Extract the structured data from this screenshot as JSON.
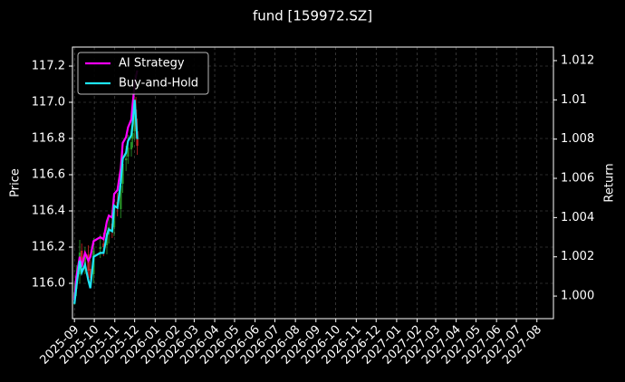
{
  "chart_data": {
    "type": "candlestick-returns",
    "title": "fund [159972.SZ]",
    "ylabel": "Price",
    "y2label": "Return",
    "x": [
      "2025-09-01",
      "2025-09-04",
      "2025-09-09",
      "2025-09-12",
      "2025-09-17",
      "2025-09-22",
      "2025-09-25",
      "2025-09-30",
      "2025-10-10",
      "2025-10-15",
      "2025-10-20",
      "2025-10-23",
      "2025-10-28",
      "2025-10-31",
      "2025-11-05",
      "2025-11-10",
      "2025-11-13",
      "2025-11-18",
      "2025-11-21",
      "2025-11-26",
      "2025-11-28",
      "2025-12-01",
      "2025-12-03",
      "2025-12-05"
    ],
    "open": [
      115.92,
      115.97,
      116.05,
      116.18,
      116.1,
      116.16,
      116.08,
      116.05,
      116.19,
      116.22,
      116.21,
      116.27,
      116.33,
      116.31,
      116.45,
      116.41,
      116.55,
      116.68,
      116.7,
      116.74,
      116.8,
      116.84,
      116.96,
      116.84
    ],
    "high": [
      116.0,
      116.1,
      116.24,
      116.22,
      116.2,
      116.21,
      116.13,
      116.25,
      116.27,
      116.28,
      116.35,
      116.38,
      116.39,
      116.5,
      116.5,
      116.6,
      116.73,
      116.76,
      116.82,
      116.85,
      116.9,
      117.02,
      117.03,
      116.91
    ],
    "low": [
      115.88,
      115.93,
      116.0,
      116.05,
      116.05,
      116.02,
      115.98,
      116.0,
      116.14,
      116.15,
      116.16,
      116.22,
      116.25,
      116.26,
      116.37,
      116.36,
      116.5,
      116.62,
      116.66,
      116.7,
      116.75,
      116.79,
      116.8,
      116.71
    ],
    "close": [
      115.95,
      116.04,
      116.17,
      116.11,
      116.15,
      116.07,
      116.03,
      116.18,
      116.2,
      116.2,
      116.28,
      116.31,
      116.3,
      116.43,
      116.42,
      116.54,
      116.66,
      116.69,
      116.75,
      116.78,
      116.83,
      116.95,
      116.85,
      116.76
    ],
    "up_color": "#2ca02c",
    "down_color": "#d62728",
    "series": [
      {
        "name": "AI Strategy",
        "color": "#ff00ff",
        "axis": "y2",
        "values": [
          0.9998,
          1.001,
          1.002,
          1.0015,
          1.0022,
          1.0018,
          1.002,
          1.0028,
          1.003,
          1.0029,
          1.0038,
          1.0041,
          1.004,
          1.0052,
          1.0054,
          1.0065,
          1.0078,
          1.0081,
          1.0086,
          1.009,
          1.0098,
          1.0108,
          1.0112,
          1.0115
        ]
      },
      {
        "name": "Buy-and-Hold",
        "color": "#1ee5f5",
        "axis": "y2",
        "values": [
          0.9996,
          1.0005,
          1.0018,
          1.0012,
          1.0016,
          1.0008,
          1.0004,
          1.002,
          1.0022,
          1.0022,
          1.0031,
          1.0034,
          1.0033,
          1.0046,
          1.0045,
          1.0058,
          1.007,
          1.0073,
          1.0079,
          1.0082,
          1.0088,
          1.01,
          1.009,
          1.008
        ]
      }
    ],
    "xlim": [
      "2025-08-29",
      "2027-08-26"
    ],
    "xticks": [
      {
        "value": "2025-09-01",
        "label": "2025-09"
      },
      {
        "value": "2025-10-01",
        "label": "2025-10"
      },
      {
        "value": "2025-11-01",
        "label": "2025-11"
      },
      {
        "value": "2025-12-01",
        "label": "2025-12"
      },
      {
        "value": "2026-01-01",
        "label": "2026-01"
      },
      {
        "value": "2026-02-01",
        "label": "2026-02"
      },
      {
        "value": "2026-03-01",
        "label": "2026-03"
      },
      {
        "value": "2026-04-01",
        "label": "2026-04"
      },
      {
        "value": "2026-05-01",
        "label": "2026-05"
      },
      {
        "value": "2026-06-01",
        "label": "2026-06"
      },
      {
        "value": "2026-07-01",
        "label": "2026-07"
      },
      {
        "value": "2026-08-01",
        "label": "2026-08"
      },
      {
        "value": "2026-09-01",
        "label": "2026-09"
      },
      {
        "value": "2026-10-01",
        "label": "2026-10"
      },
      {
        "value": "2026-11-01",
        "label": "2026-11"
      },
      {
        "value": "2026-12-01",
        "label": "2026-12"
      },
      {
        "value": "2027-01-01",
        "label": "2027-01"
      },
      {
        "value": "2027-02-01",
        "label": "2027-02"
      },
      {
        "value": "2027-03-01",
        "label": "2027-03"
      },
      {
        "value": "2027-04-01",
        "label": "2027-04"
      },
      {
        "value": "2027-05-01",
        "label": "2027-05"
      },
      {
        "value": "2027-06-01",
        "label": "2027-06"
      },
      {
        "value": "2027-07-01",
        "label": "2027-07"
      },
      {
        "value": "2027-08-01",
        "label": "2027-08"
      }
    ],
    "ylim": [
      115.805,
      117.305
    ],
    "yticks": [
      {
        "value": 116,
        "label": "116.0"
      },
      116.2,
      116.4,
      116.6,
      116.8,
      {
        "value": 117,
        "label": "117.0"
      },
      117.2
    ],
    "y2lim": [
      0.99885,
      1.01269
    ],
    "y2ticks": [
      {
        "value": 1,
        "label": "1.000"
      },
      1.002,
      1.004,
      1.006,
      1.008,
      1.01,
      1.012
    ],
    "grid": true,
    "legend": "upper-left"
  }
}
